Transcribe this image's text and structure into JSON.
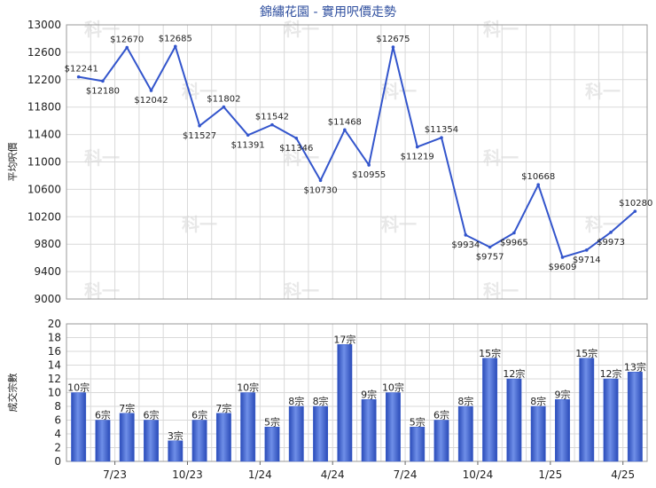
{
  "title": "錦繡花園 - 實用呎價走勢",
  "colors": {
    "line": "#3355cc",
    "bar": "#3a5fcd",
    "grid": "#d9d9d9"
  },
  "watermark": "科一",
  "chart_data": [
    {
      "type": "line",
      "ylabel": "平均呎價",
      "ylim": [
        9000,
        13000
      ],
      "yticks": [
        "13000",
        "12600",
        "12200",
        "11800",
        "11400",
        "11000",
        "10600",
        "10200",
        "9800",
        "9400",
        "9000"
      ],
      "grid": true,
      "values": [
        12241,
        12180,
        12670,
        12042,
        12685,
        11527,
        11802,
        11391,
        11542,
        11346,
        10730,
        11468,
        10955,
        12675,
        11219,
        11354,
        9934,
        9757,
        9965,
        10668,
        9609,
        9714,
        9973,
        10280
      ],
      "labels": [
        "$12241",
        "$12180",
        "$12670",
        "$12042",
        "$12685",
        "$11527",
        "$11802",
        "$11391",
        "$11542",
        "$11346",
        "$10730",
        "$11468",
        "$10955",
        "$12675",
        "$11219",
        "$11354",
        "$9934",
        "$9757",
        "$9965",
        "$10668",
        "$9609",
        "$9714",
        "$9973",
        "$10280"
      ]
    },
    {
      "type": "bar",
      "ylabel": "成交宗數",
      "ylim": [
        0,
        20
      ],
      "yticks": [
        "20",
        "18",
        "16",
        "14",
        "12",
        "10",
        "8",
        "6",
        "4",
        "2",
        "0"
      ],
      "grid": true,
      "values": [
        10,
        6,
        7,
        6,
        3,
        6,
        7,
        10,
        5,
        8,
        8,
        17,
        9,
        10,
        5,
        6,
        8,
        15,
        12,
        8,
        9,
        15,
        12,
        13
      ],
      "labels": [
        "10宗",
        "6宗",
        "7宗",
        "6宗",
        "3宗",
        "6宗",
        "7宗",
        "10宗",
        "5宗",
        "8宗",
        "8宗",
        "17宗",
        "9宗",
        "10宗",
        "5宗",
        "6宗",
        "8宗",
        "15宗",
        "12宗",
        "8宗",
        "9宗",
        "15宗",
        "12宗",
        "13宗"
      ],
      "xticks": [
        "7/23",
        "10/23",
        "1/24",
        "4/24",
        "7/24",
        "10/24",
        "1/25",
        "4/25"
      ]
    }
  ]
}
